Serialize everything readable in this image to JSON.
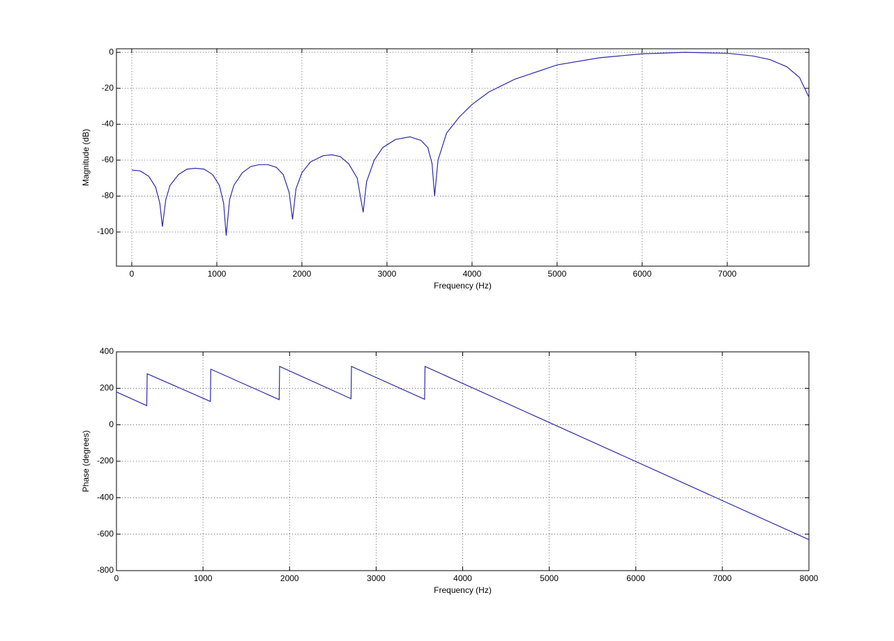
{
  "chart_data": [
    {
      "type": "line",
      "xlabel": "Frequency (Hz)",
      "ylabel": "Magnitude (dB)",
      "color": "#2a2aa8",
      "grid": true,
      "xlim": [
        -180,
        7960
      ],
      "ylim": [
        -119,
        2
      ],
      "xticks": [
        0,
        1000,
        2000,
        3000,
        4000,
        5000,
        6000,
        7000
      ],
      "yticks": [
        -100,
        -80,
        -60,
        -40,
        -20,
        0
      ],
      "x": [
        0,
        100,
        200,
        280,
        330,
        360,
        400,
        450,
        550,
        650,
        750,
        850,
        950,
        1030,
        1080,
        1110,
        1150,
        1200,
        1300,
        1400,
        1500,
        1600,
        1700,
        1780,
        1850,
        1890,
        1930,
        2000,
        2100,
        2250,
        2350,
        2450,
        2550,
        2650,
        2720,
        2760,
        2850,
        2950,
        3100,
        3270,
        3400,
        3480,
        3530,
        3560,
        3600,
        3700,
        3850,
        4000,
        4200,
        4500,
        5000,
        5500,
        6000,
        6500,
        7000,
        7300,
        7500,
        7700,
        7850,
        7960
      ],
      "values": [
        -65.5,
        -66,
        -69,
        -75,
        -84,
        -97,
        -82,
        -74,
        -68,
        -65,
        -64.5,
        -65,
        -68,
        -74,
        -84,
        -102,
        -82,
        -74,
        -67,
        -63.5,
        -62.5,
        -62.5,
        -64,
        -68,
        -78,
        -93,
        -76,
        -67,
        -61,
        -57.5,
        -57,
        -58,
        -62,
        -70,
        -89,
        -72,
        -60,
        -53,
        -48.5,
        -47,
        -49,
        -53,
        -62,
        -80,
        -60,
        -45,
        -36,
        -29,
        -22,
        -15,
        -7,
        -3,
        -0.8,
        0,
        -0.5,
        -2,
        -4,
        -8,
        -14,
        -25
      ]
    },
    {
      "type": "line",
      "xlabel": "Frequency (Hz)",
      "ylabel": "Phase (degrees)",
      "color": "#2a2aa8",
      "grid": true,
      "xlim": [
        0,
        8000
      ],
      "ylim": [
        -800,
        400
      ],
      "xticks": [
        0,
        1000,
        2000,
        3000,
        4000,
        5000,
        6000,
        7000,
        8000
      ],
      "yticks": [
        -800,
        -600,
        -400,
        -200,
        0,
        200,
        400
      ],
      "x": [
        0,
        350,
        355,
        1085,
        1090,
        1880,
        1885,
        2710,
        2715,
        3560,
        3565,
        8000
      ],
      "values": [
        180,
        105,
        280,
        128,
        305,
        138,
        320,
        143,
        320,
        140,
        320,
        -630
      ]
    }
  ]
}
